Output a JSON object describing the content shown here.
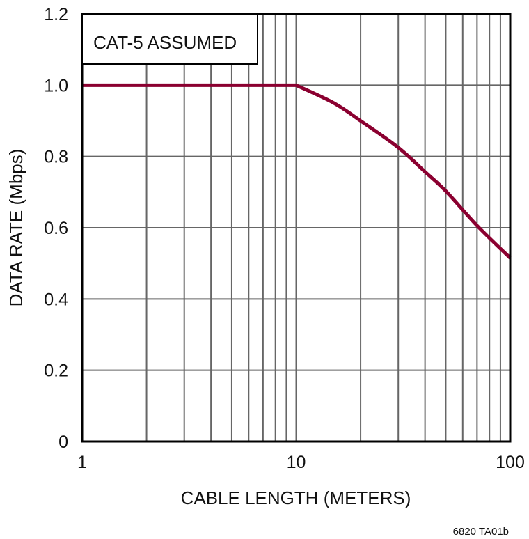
{
  "chart_data": {
    "type": "line",
    "title": "",
    "xlabel": "CABLE LENGTH (METERS)",
    "ylabel": "DATA RATE (Mbps)",
    "xscale": "log",
    "xlim": [
      1,
      100
    ],
    "ylim": [
      0,
      1.2
    ],
    "grid": true,
    "xticks": [
      {
        "v": 1,
        "label": "1"
      },
      {
        "v": 10,
        "label": "10"
      },
      {
        "v": 100,
        "label": "100"
      }
    ],
    "yticks": [
      {
        "v": 0,
        "label": "0"
      },
      {
        "v": 0.2,
        "label": "0.2"
      },
      {
        "v": 0.4,
        "label": "0.4"
      },
      {
        "v": 0.6,
        "label": "0.6"
      },
      {
        "v": 0.8,
        "label": "0.8"
      },
      {
        "v": 1.0,
        "label": "1.0"
      },
      {
        "v": 1.2,
        "label": "1.2"
      }
    ],
    "annotation": "CAT-5 ASSUMED",
    "series": [
      {
        "color": "#8b0030",
        "x": [
          1,
          10,
          15,
          20,
          30,
          40,
          50,
          70,
          100
        ],
        "y": [
          1.0,
          1.0,
          0.95,
          0.9,
          0.825,
          0.757,
          0.703,
          0.606,
          0.515
        ]
      }
    ]
  },
  "footer_code": "6820 TA01b"
}
